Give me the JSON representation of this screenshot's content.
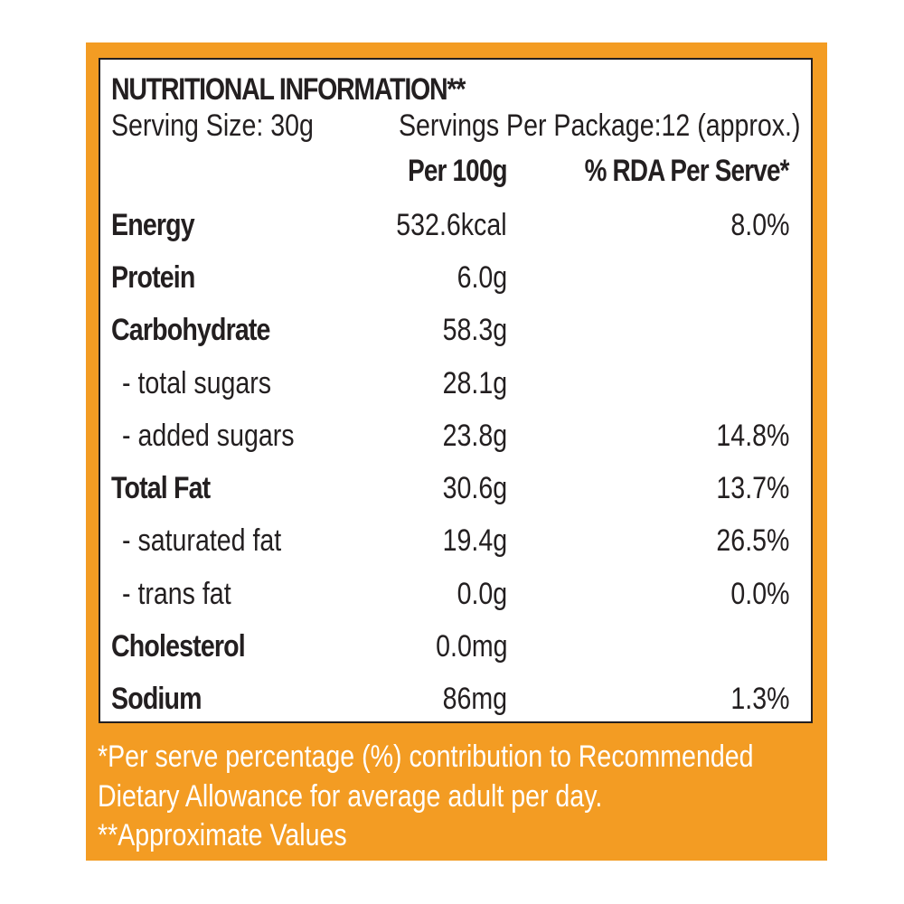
{
  "label": {
    "title": "NUTRITIONAL INFORMATION**",
    "serving_size": "Serving Size: 30g",
    "servings_per_package": "Servings Per Package:12 (approx.)",
    "columns": {
      "per_100g": "Per 100g",
      "rda_per_serve": "% RDA Per Serve*"
    },
    "rows": [
      {
        "name": "Energy",
        "per_100g": "532.6kcal",
        "rda": "8.0%",
        "style": "main"
      },
      {
        "name": "Protein",
        "per_100g": "6.0g",
        "rda": "",
        "style": "main"
      },
      {
        "name": "Carbohydrate",
        "per_100g": "58.3g",
        "rda": "",
        "style": "main"
      },
      {
        "name": "- total sugars",
        "per_100g": "28.1g",
        "rda": "",
        "style": "sub"
      },
      {
        "name": "- added sugars",
        "per_100g": "23.8g",
        "rda": "14.8%",
        "style": "sub"
      },
      {
        "name": "Total Fat",
        "per_100g": "30.6g",
        "rda": "13.7%",
        "style": "main"
      },
      {
        "name": "- saturated fat",
        "per_100g": "19.4g",
        "rda": "26.5%",
        "style": "sub"
      },
      {
        "name": "- trans fat",
        "per_100g": "0.0g",
        "rda": "0.0%",
        "style": "sub"
      },
      {
        "name": "Cholesterol",
        "per_100g": "0.0mg",
        "rda": "",
        "style": "main"
      },
      {
        "name": "Sodium",
        "per_100g": "86mg",
        "rda": "1.3%",
        "style": "main"
      }
    ]
  },
  "footnotes": {
    "line1": "*Per serve percentage (%) contribution to Recommended",
    "line2": "Dietary Allowance for average adult per day.",
    "line3": "**Approximate Values"
  },
  "colors": {
    "panel": "#f39c23",
    "text": "#231f20",
    "footnote_text": "#ffffff"
  }
}
